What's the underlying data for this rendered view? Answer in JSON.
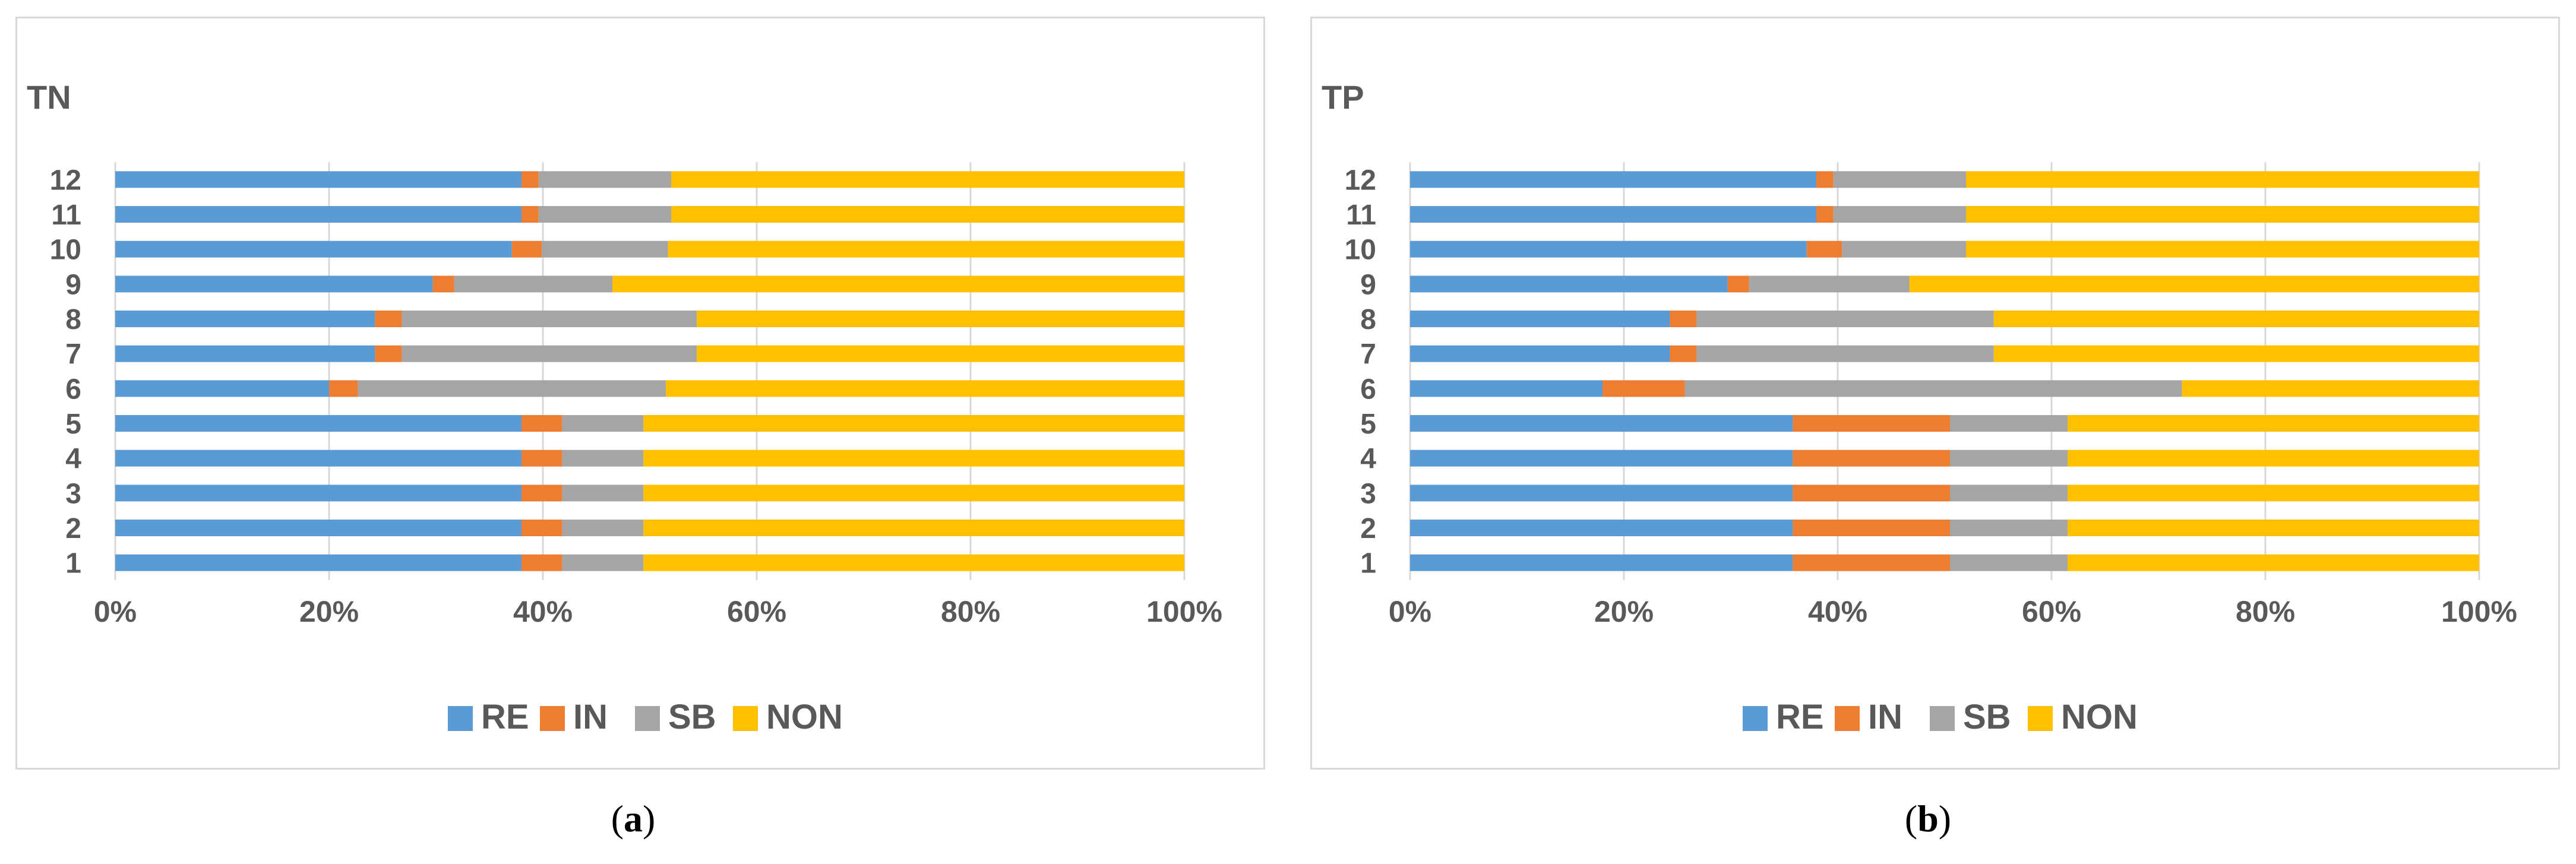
{
  "colors": {
    "RE": "#5b9bd5",
    "IN": "#ed7d31",
    "SB": "#a5a5a5",
    "NON": "#ffc000",
    "grid": "#d9d9d9",
    "text": "#595959"
  },
  "captions": {
    "a_open": "(",
    "a_letter": "a",
    "a_close": ")",
    "b_open": "(",
    "b_letter": "b",
    "b_close": ")"
  },
  "chart_data": [
    {
      "type": "bar",
      "orientation": "horizontal",
      "stacked": "percent",
      "title": "TN",
      "categories": [
        "1",
        "2",
        "3",
        "4",
        "5",
        "6",
        "7",
        "8",
        "9",
        "10",
        "11",
        "12"
      ],
      "xticks": [
        "0%",
        "20%",
        "40%",
        "60%",
        "80%",
        "100%"
      ],
      "xlim": [
        0,
        100
      ],
      "grid": "vertical",
      "legend": "bottom",
      "series": [
        {
          "name": "RE",
          "values": [
            38,
            38,
            38,
            38,
            38,
            20,
            24.3,
            24.3,
            29.7,
            37.1,
            38,
            38
          ]
        },
        {
          "name": "IN",
          "values": [
            3.8,
            3.8,
            3.8,
            3.8,
            3.8,
            2.7,
            2.5,
            2.5,
            2,
            2.8,
            1.6,
            1.6
          ]
        },
        {
          "name": "SB",
          "values": [
            7.6,
            7.6,
            7.6,
            7.6,
            7.6,
            28.8,
            27.6,
            27.6,
            14.8,
            11.8,
            12.4,
            12.4
          ]
        },
        {
          "name": "NON",
          "values": [
            50.6,
            50.6,
            50.6,
            50.6,
            50.6,
            48.5,
            45.6,
            45.6,
            53.5,
            48.3,
            48,
            48
          ]
        }
      ]
    },
    {
      "type": "bar",
      "orientation": "horizontal",
      "stacked": "percent",
      "title": "TP",
      "categories": [
        "1",
        "2",
        "3",
        "4",
        "5",
        "6",
        "7",
        "8",
        "9",
        "10",
        "11",
        "12"
      ],
      "xticks": [
        "0%",
        "20%",
        "40%",
        "60%",
        "80%",
        "100%"
      ],
      "xlim": [
        0,
        100
      ],
      "grid": "vertical",
      "legend": "bottom",
      "series": [
        {
          "name": "RE",
          "values": [
            35.8,
            35.8,
            35.8,
            35.8,
            35.8,
            18,
            24.3,
            24.3,
            29.7,
            37.1,
            38,
            38
          ]
        },
        {
          "name": "IN",
          "values": [
            14.7,
            14.7,
            14.7,
            14.7,
            14.7,
            7.7,
            2.5,
            2.5,
            2,
            3.3,
            1.6,
            1.6
          ]
        },
        {
          "name": "SB",
          "values": [
            11,
            11,
            11,
            11,
            11,
            46.5,
            27.8,
            27.8,
            15,
            11.6,
            12.4,
            12.4
          ]
        },
        {
          "name": "NON",
          "values": [
            38.5,
            38.5,
            38.5,
            38.5,
            38.5,
            27.8,
            45.4,
            45.4,
            53.3,
            48,
            48,
            48
          ]
        }
      ]
    }
  ]
}
